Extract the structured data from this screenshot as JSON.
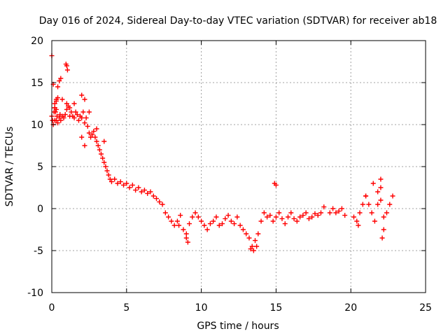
{
  "chart_data": {
    "type": "scatter",
    "title": "Day 016 of 2024, Sidereal Day-to-day VTEC variation (SDTVAR) for receiver ab18",
    "xlabel": "GPS time / hours",
    "ylabel": "SDTVAR / TECUs",
    "xlim": [
      0,
      25
    ],
    "ylim": [
      -10,
      20
    ],
    "xticks": [
      0,
      5,
      10,
      15,
      20,
      25
    ],
    "yticks": [
      -10,
      -5,
      0,
      5,
      10,
      15,
      20
    ],
    "xtick_labels": [
      "0",
      "5",
      "10",
      "15",
      "20",
      "25"
    ],
    "ytick_labels": [
      "-10",
      "-5",
      "0",
      "5",
      "10",
      "15",
      "20"
    ],
    "grid": true,
    "marker": "plus",
    "color": "#ff0000",
    "series": [
      {
        "name": "SDTVAR",
        "x": [
          0.0,
          0.05,
          0.1,
          0.15,
          0.2,
          0.3,
          0.35,
          0.4,
          0.5,
          0.55,
          0.6,
          0.7,
          0.8,
          0.9,
          1.0,
          1.1,
          1.2,
          1.3,
          1.4,
          1.5,
          1.6,
          1.7,
          1.8,
          1.9,
          2.0,
          2.1,
          2.2,
          2.3,
          2.4,
          2.5,
          2.6,
          2.7,
          2.8,
          2.9,
          3.0,
          3.1,
          3.2,
          3.3,
          3.4,
          3.5,
          3.6,
          3.7,
          3.8,
          3.9,
          4.0,
          4.2,
          4.4,
          4.6,
          4.8,
          5.0,
          5.2,
          5.4,
          5.6,
          5.8,
          6.0,
          6.2,
          6.4,
          6.6,
          6.8,
          7.0,
          7.2,
          7.4,
          7.6,
          7.8,
          8.0,
          8.2,
          8.4,
          8.6,
          8.8,
          9.0,
          9.2,
          9.4,
          9.6,
          9.8,
          10.0,
          10.2,
          10.4,
          10.6,
          10.8,
          11.0,
          11.2,
          11.4,
          11.6,
          11.8,
          12.0,
          12.2,
          12.4,
          12.6,
          12.8,
          13.0,
          13.2,
          13.4,
          13.6,
          13.8,
          14.0,
          14.2,
          14.4,
          14.6,
          14.8,
          15.0,
          15.2,
          15.4,
          15.6,
          15.8,
          16.0,
          16.2,
          16.4,
          16.6,
          16.8,
          17.0,
          17.2,
          17.4,
          17.6,
          17.8,
          18.0,
          18.2,
          18.6,
          18.8,
          19.0,
          19.2,
          19.4,
          19.6,
          20.2,
          20.4,
          20.6,
          20.8,
          21.0,
          21.2,
          21.4,
          21.6,
          21.8,
          22.0,
          22.2,
          22.4,
          22.6,
          22.8,
          0.0,
          0.1,
          0.2,
          0.3,
          0.4,
          0.5,
          0.6,
          0.7,
          0.95,
          1.0,
          1.05,
          0.2,
          0.25,
          0.3,
          0.4,
          0.2,
          0.3,
          1.0,
          1.2,
          1.5,
          2.0,
          2.2,
          2.5,
          3.0,
          3.5,
          2.0,
          2.2,
          8.5,
          9.0,
          9.1,
          13.3,
          13.5,
          13.7,
          14.9,
          15.0,
          20.5,
          21.0,
          21.5,
          22.0,
          22.1,
          22.2,
          21.8,
          22.0
        ],
        "y": [
          11.0,
          10.5,
          10.0,
          11.5,
          12.0,
          10.5,
          11.0,
          10.2,
          10.8,
          11.2,
          10.5,
          11.0,
          10.8,
          11.2,
          11.8,
          12.2,
          12.0,
          11.5,
          11.0,
          10.8,
          11.5,
          11.2,
          10.5,
          11.0,
          10.8,
          11.5,
          10.2,
          10.8,
          9.8,
          9.0,
          8.5,
          8.8,
          9.2,
          8.5,
          8.0,
          7.5,
          7.0,
          6.5,
          6.0,
          5.5,
          5.0,
          4.5,
          4.0,
          3.5,
          3.2,
          3.5,
          3.0,
          3.2,
          2.8,
          3.0,
          2.5,
          2.8,
          2.2,
          2.5,
          2.0,
          2.2,
          1.8,
          2.0,
          1.5,
          1.2,
          0.8,
          0.5,
          -0.5,
          -1.0,
          -1.5,
          -2.0,
          -1.5,
          -0.8,
          -2.5,
          -3.0,
          -1.8,
          -1.0,
          -0.5,
          -1.0,
          -1.5,
          -2.0,
          -2.5,
          -1.8,
          -1.5,
          -1.0,
          -2.0,
          -1.8,
          -1.2,
          -0.8,
          -1.5,
          -1.8,
          -1.0,
          -2.0,
          -2.5,
          -3.0,
          -3.5,
          -4.5,
          -3.8,
          -3.0,
          -1.5,
          -0.5,
          -1.0,
          -0.8,
          -1.5,
          -1.0,
          -0.5,
          -1.2,
          -1.8,
          -1.0,
          -0.5,
          -1.2,
          -1.5,
          -1.0,
          -0.8,
          -0.5,
          -1.2,
          -1.0,
          -0.6,
          -0.8,
          -0.5,
          0.2,
          -0.5,
          0.0,
          -0.5,
          -0.3,
          0.0,
          -0.8,
          -1.0,
          -1.5,
          -0.5,
          0.5,
          1.5,
          0.5,
          -0.5,
          -1.5,
          0.5,
          2.5,
          -1.0,
          -0.5,
          0.5,
          1.5,
          18.2,
          14.8,
          12.5,
          13.0,
          14.5,
          15.2,
          15.5,
          13.0,
          17.2,
          17.0,
          16.5,
          12.0,
          11.5,
          12.8,
          13.2,
          10.5,
          11.8,
          12.5,
          11.0,
          12.5,
          13.5,
          13.0,
          11.5,
          9.5,
          8.0,
          8.5,
          7.5,
          -2.0,
          -3.5,
          -4.0,
          -4.8,
          -5.0,
          -4.5,
          3.0,
          2.8,
          -2.0,
          1.5,
          3.0,
          3.5,
          -3.5,
          -2.5,
          2.0,
          1.0
        ]
      }
    ]
  }
}
